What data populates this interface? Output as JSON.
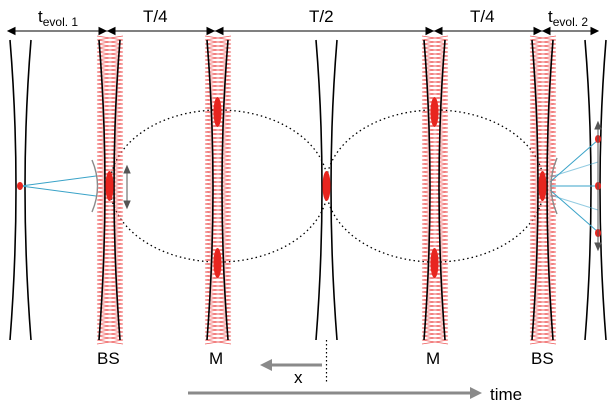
{
  "labels": {
    "t_evol_1_main": "t",
    "t_evol_1_sub": "evol. 1",
    "quarter_period_left": "T/4",
    "half_period": "T/2",
    "quarter_period_right": "T/4",
    "t_evol_2_main": "t",
    "t_evol_2_sub": "evol. 2",
    "beam_splitter_left": "BS",
    "mirror_left": "M",
    "mirror_right": "M",
    "beam_splitter_right": "BS",
    "position_axis": "x",
    "time_axis": "time"
  },
  "colors": {
    "trap": "#000000",
    "atom_cloud": "#e8251f",
    "laser_wave": "#ee5a5a",
    "imaging_beam": "#3aa3c8",
    "timeline_arrow": "#8a8a8a",
    "orbit_path": "#000000"
  }
}
